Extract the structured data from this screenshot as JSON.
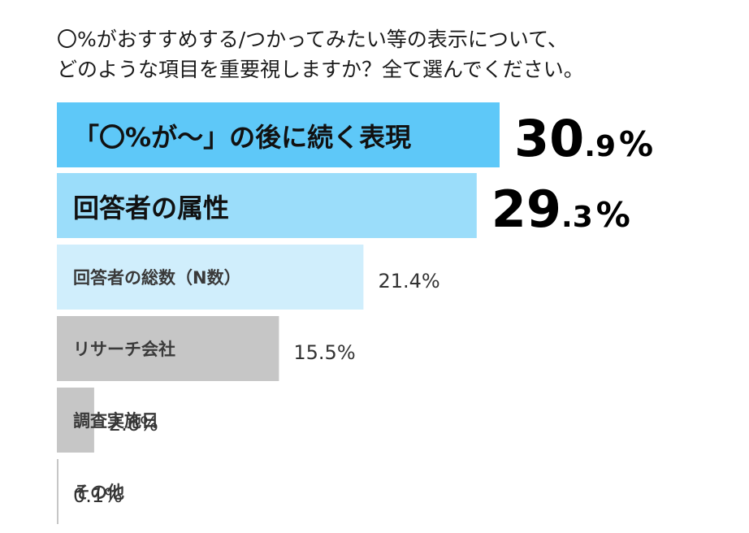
{
  "question": {
    "line1": "〇%がおすすめする/つかってみたい等の表示について、",
    "line2": "どのような項目を重要視しますか？全て選んでください。"
  },
  "chart_data": {
    "type": "bar",
    "orientation": "horizontal",
    "unit": "%",
    "categories": [
      "「〇%が～」の後に続く表現",
      "回答者の属性",
      "回答者の総数（N数）",
      "リサーチ会社",
      "調査実施日",
      "その他"
    ],
    "values": [
      30.9,
      29.3,
      21.4,
      15.5,
      2.6,
      0.1
    ],
    "value_labels": [
      "30.9%",
      "29.3%",
      "21.4%",
      "15.5%",
      "2.6%",
      "0.1%"
    ],
    "colors": [
      "#5ec8f8",
      "#9bddfa",
      "#d0eefc",
      "#c6c6c6",
      "#c6c6c6",
      "#c6c6c6"
    ],
    "xlim": [
      0,
      33
    ]
  }
}
